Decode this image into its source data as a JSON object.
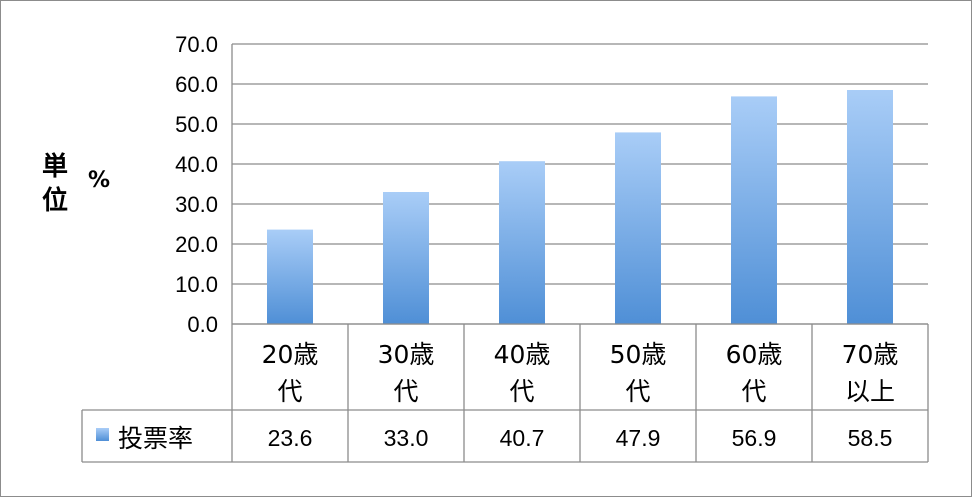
{
  "chart_data": {
    "type": "bar",
    "categories": [
      "20歳\n代",
      "30歳\n代",
      "40歳\n代",
      "50歳\n代",
      "60歳\n代",
      "70歳\n以上"
    ],
    "series": [
      {
        "name": "投票率",
        "values": [
          23.6,
          33.0,
          40.7,
          47.9,
          56.9,
          58.5
        ],
        "value_labels": [
          "23.6",
          "33.0",
          "40.7",
          "47.9",
          "56.9",
          "58.5"
        ]
      }
    ],
    "ylim": [
      0,
      70
    ],
    "yticks": [
      "0.0",
      "10.0",
      "20.0",
      "30.0",
      "40.0",
      "50.0",
      "60.0",
      "70.0"
    ],
    "ylabel": "単位",
    "yunit": "%",
    "grid": true,
    "data_table": true,
    "colors": {
      "bar_top": "#a9cdf7",
      "bar_bottom": "#4f8fd6",
      "grid": "#8c8c8c"
    }
  }
}
